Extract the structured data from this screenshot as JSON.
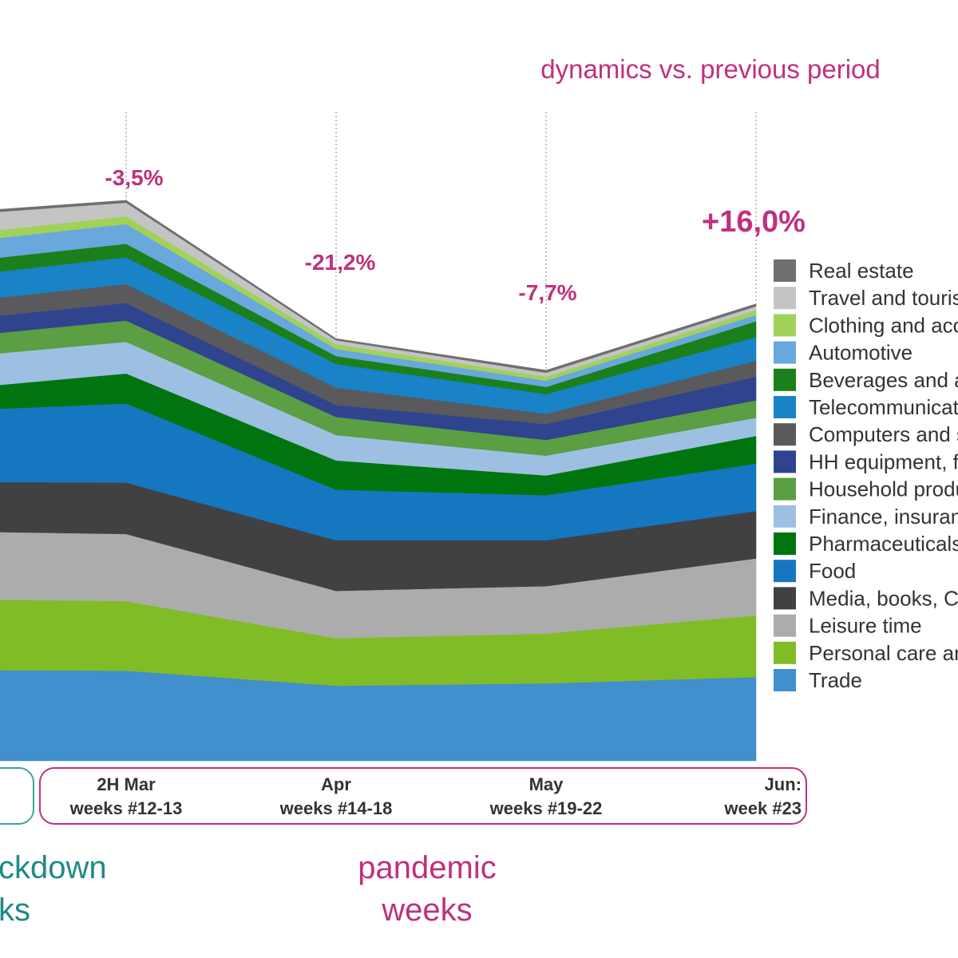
{
  "header": {
    "title": "dynamics vs. previous period"
  },
  "colors": {
    "accent_pink": "#c0307f",
    "accent_teal": "#1f8a86"
  },
  "chart_data": {
    "type": "area",
    "stacked": true,
    "categories": [
      "",
      "2H Mar\nweeks #12-13",
      "Apr\nweeks #14-18",
      "May\nweeks #19-22",
      "Jun:\nweek #23"
    ],
    "category_lines": [
      [
        "",
        ""
      ],
      [
        "2H Mar",
        "weeks #12-13"
      ],
      [
        "Apr",
        "weeks #14-18"
      ],
      [
        "May",
        "weeks #19-22"
      ],
      [
        "Jun:",
        "week #23"
      ]
    ],
    "dynamics": [
      "",
      "-3,5%",
      "-21,2%",
      "-7,7%",
      "+16,0%"
    ],
    "series": [
      {
        "name": "Trade",
        "color": "#418fcc",
        "values": [
          115,
          114,
          95,
          98,
          106
        ]
      },
      {
        "name": "Personal care and hygiene",
        "color": "#80bc26",
        "values": [
          90,
          88,
          60,
          63,
          78
        ]
      },
      {
        "name": "Leisure time",
        "color": "#acacac",
        "values": [
          86,
          85,
          60,
          60,
          72
        ]
      },
      {
        "name": "Media, books, CD, DVD",
        "color": "#414143",
        "values": [
          62,
          65,
          64,
          58,
          60
        ]
      },
      {
        "name": "Food",
        "color": "#1577c0",
        "values": [
          88,
          100,
          64,
          57,
          60
        ]
      },
      {
        "name": "Pharmaceuticals",
        "color": "#00750f",
        "values": [
          25,
          38,
          37,
          25,
          35
        ]
      },
      {
        "name": "Finance, insurance",
        "color": "#9dc0e2",
        "values": [
          40,
          40,
          32,
          25,
          23
        ]
      },
      {
        "name": "Household products",
        "color": "#5b9e43",
        "values": [
          25,
          27,
          23,
          20,
          22
        ]
      },
      {
        "name": "HH equipment, furniture",
        "color": "#2f438f",
        "values": [
          22,
          22,
          15,
          20,
          30
        ]
      },
      {
        "name": "Computers and software",
        "color": "#5a5a5c",
        "values": [
          22,
          24,
          22,
          13,
          20
        ]
      },
      {
        "name": "Telecommunications",
        "color": "#1a82c6",
        "values": [
          32,
          34,
          30,
          25,
          30
        ]
      },
      {
        "name": "Beverages and alcohol",
        "color": "#1b7f1b",
        "values": [
          18,
          17,
          10,
          9,
          20
        ]
      },
      {
        "name": "Automotive",
        "color": "#68a8dc",
        "values": [
          25,
          25,
          9,
          8,
          8
        ]
      },
      {
        "name": "Clothing and accessories",
        "color": "#a2d15a",
        "values": [
          10,
          10,
          6,
          5,
          6
        ]
      },
      {
        "name": "Travel and tourism",
        "color": "#c4c4c4",
        "values": [
          27,
          17,
          5,
          5,
          5
        ]
      },
      {
        "name": "Real estate",
        "color": "#6f6f71",
        "values": [
          3,
          3,
          2,
          3,
          3
        ]
      }
    ],
    "ylim": [
      0,
      720
    ],
    "grid": false,
    "legend_position": "right"
  },
  "footer": {
    "left_lines": [
      "ckdown",
      "ks"
    ],
    "right_lines": [
      "pandemic",
      "weeks"
    ]
  }
}
